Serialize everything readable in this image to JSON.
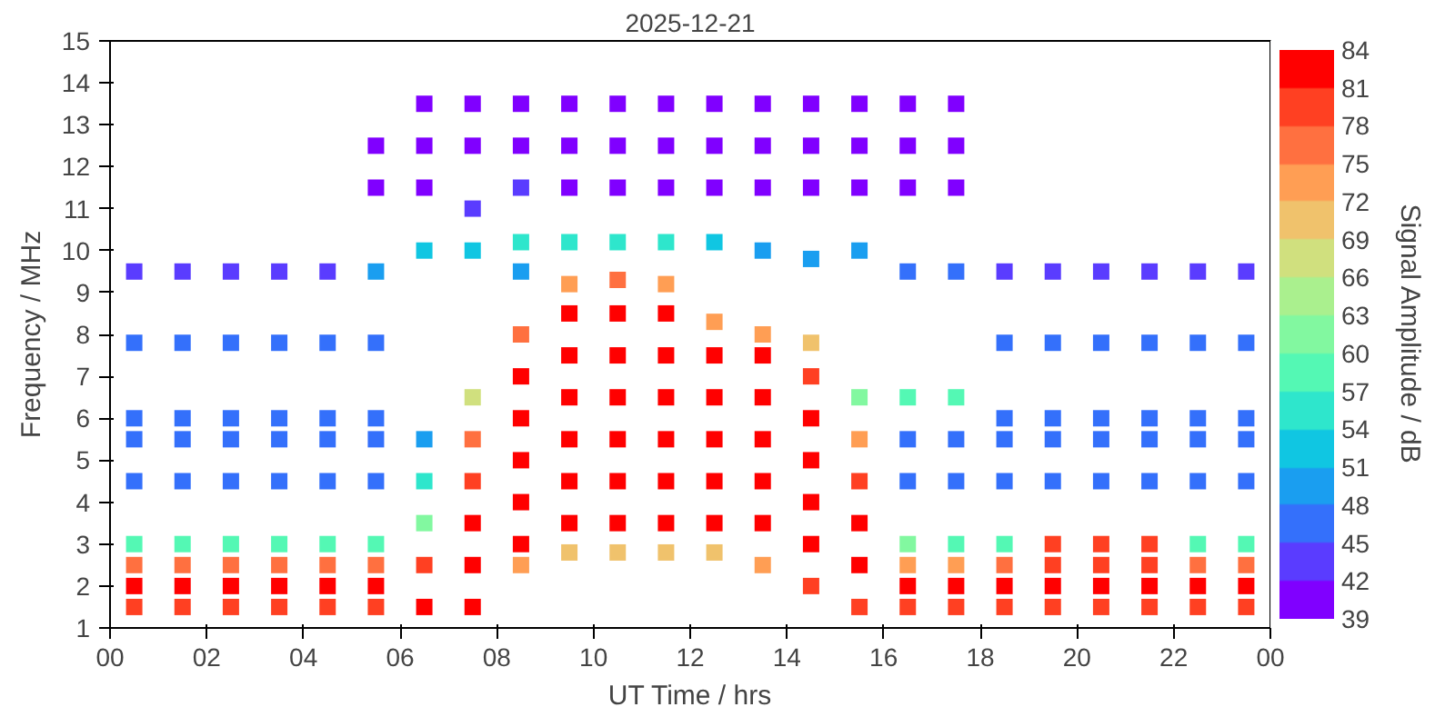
{
  "chart_data": {
    "type": "scatter",
    "title": "2025-12-21",
    "xlabel": "UT Time / hrs",
    "ylabel": "Frequency / MHz",
    "clabel": "Signal Amplitude / dB",
    "marker": "square",
    "xlim": [
      0,
      24
    ],
    "xticks": [
      {
        "value": 0,
        "label": "00"
      },
      {
        "value": 2,
        "label": "02"
      },
      {
        "value": 4,
        "label": "04"
      },
      {
        "value": 6,
        "label": "06"
      },
      {
        "value": 8,
        "label": "08"
      },
      {
        "value": 10,
        "label": "10"
      },
      {
        "value": 12,
        "label": "12"
      },
      {
        "value": 14,
        "label": "14"
      },
      {
        "value": 16,
        "label": "16"
      },
      {
        "value": 18,
        "label": "18"
      },
      {
        "value": 20,
        "label": "20"
      },
      {
        "value": 22,
        "label": "22"
      },
      {
        "value": 24,
        "label": "00"
      }
    ],
    "ylim": [
      1,
      15
    ],
    "yticks": [
      1,
      2,
      3,
      4,
      5,
      6,
      7,
      8,
      9,
      10,
      11,
      12,
      13,
      14,
      15
    ],
    "clim": [
      39,
      84
    ],
    "cticks": [
      39,
      42,
      45,
      48,
      51,
      54,
      57,
      60,
      63,
      66,
      69,
      72,
      75,
      78,
      81,
      84
    ],
    "x": [
      0.5,
      0.5,
      0.5,
      0.5,
      0.5,
      0.5,
      0.5,
      0.5,
      0.5,
      1.5,
      1.5,
      1.5,
      1.5,
      1.5,
      1.5,
      1.5,
      1.5,
      1.5,
      2.5,
      2.5,
      2.5,
      2.5,
      2.5,
      2.5,
      2.5,
      2.5,
      2.5,
      3.5,
      3.5,
      3.5,
      3.5,
      3.5,
      3.5,
      3.5,
      3.5,
      3.5,
      4.5,
      4.5,
      4.5,
      4.5,
      4.5,
      4.5,
      4.5,
      4.5,
      4.5,
      5.5,
      5.5,
      5.5,
      5.5,
      5.5,
      5.5,
      5.5,
      5.5,
      5.5,
      5.5,
      5.5,
      6.5,
      6.5,
      6.5,
      6.5,
      6.5,
      6.5,
      6.5,
      6.5,
      6.5,
      7.5,
      7.5,
      7.5,
      7.5,
      7.5,
      7.5,
      7.5,
      7.5,
      7.5,
      7.5,
      8.5,
      8.5,
      8.5,
      8.5,
      8.5,
      8.5,
      8.5,
      8.5,
      8.5,
      8.5,
      8.5,
      8.5,
      9.5,
      9.5,
      9.5,
      9.5,
      9.5,
      9.5,
      9.5,
      9.5,
      9.5,
      9.5,
      9.5,
      9.5,
      10.5,
      10.5,
      10.5,
      10.5,
      10.5,
      10.5,
      10.5,
      10.5,
      10.5,
      10.5,
      10.5,
      10.5,
      11.5,
      11.5,
      11.5,
      11.5,
      11.5,
      11.5,
      11.5,
      11.5,
      11.5,
      11.5,
      11.5,
      11.5,
      12.5,
      12.5,
      12.5,
      12.5,
      12.5,
      12.5,
      12.5,
      12.5,
      12.5,
      12.5,
      12.5,
      13.5,
      13.5,
      13.5,
      13.5,
      13.5,
      13.5,
      13.5,
      13.5,
      13.5,
      13.5,
      13.5,
      14.5,
      14.5,
      14.5,
      14.5,
      14.5,
      14.5,
      14.5,
      14.5,
      14.5,
      14.5,
      14.5,
      15.5,
      15.5,
      15.5,
      15.5,
      15.5,
      15.5,
      15.5,
      15.5,
      15.5,
      15.5,
      16.5,
      16.5,
      16.5,
      16.5,
      16.5,
      16.5,
      16.5,
      16.5,
      16.5,
      16.5,
      16.5,
      17.5,
      17.5,
      17.5,
      17.5,
      17.5,
      17.5,
      17.5,
      17.5,
      17.5,
      17.5,
      17.5,
      18.5,
      18.5,
      18.5,
      18.5,
      18.5,
      18.5,
      18.5,
      18.5,
      18.5,
      19.5,
      19.5,
      19.5,
      19.5,
      19.5,
      19.5,
      19.5,
      19.5,
      19.5,
      20.5,
      20.5,
      20.5,
      20.5,
      20.5,
      20.5,
      20.5,
      20.5,
      20.5,
      21.5,
      21.5,
      21.5,
      21.5,
      21.5,
      21.5,
      21.5,
      21.5,
      21.5,
      22.5,
      22.5,
      22.5,
      22.5,
      22.5,
      22.5,
      22.5,
      22.5,
      22.5,
      23.5,
      23.5,
      23.5,
      23.5,
      23.5,
      23.5,
      23.5,
      23.5,
      23.5
    ],
    "values": [
      1.5,
      2.0,
      2.5,
      3.0,
      4.5,
      5.5,
      6.0,
      7.8,
      9.5,
      1.5,
      2.0,
      2.5,
      3.0,
      4.5,
      5.5,
      6.0,
      7.8,
      9.5,
      1.5,
      2.0,
      2.5,
      3.0,
      4.5,
      5.5,
      6.0,
      7.8,
      9.5,
      1.5,
      2.0,
      2.5,
      3.0,
      4.5,
      5.5,
      6.0,
      7.8,
      9.5,
      1.5,
      2.0,
      2.5,
      3.0,
      4.5,
      5.5,
      6.0,
      7.8,
      9.5,
      1.5,
      2.0,
      2.5,
      3.0,
      4.5,
      5.5,
      6.0,
      7.8,
      9.5,
      11.5,
      12.5,
      1.5,
      2.5,
      3.5,
      4.5,
      5.5,
      10.0,
      11.5,
      12.5,
      13.5,
      1.5,
      2.5,
      3.5,
      4.5,
      5.5,
      6.5,
      10.0,
      11.0,
      12.5,
      13.5,
      2.5,
      3.0,
      4.0,
      5.0,
      6.0,
      7.0,
      8.0,
      9.5,
      10.2,
      11.5,
      12.5,
      13.5,
      2.8,
      3.5,
      4.5,
      5.5,
      6.5,
      7.5,
      8.5,
      9.2,
      10.2,
      11.5,
      12.5,
      13.5,
      2.8,
      3.5,
      4.5,
      5.5,
      6.5,
      7.5,
      8.5,
      9.3,
      10.2,
      11.5,
      12.5,
      13.5,
      2.8,
      3.5,
      4.5,
      5.5,
      6.5,
      7.5,
      8.5,
      9.2,
      10.2,
      11.5,
      12.5,
      13.5,
      2.8,
      3.5,
      4.5,
      5.5,
      6.5,
      7.5,
      8.3,
      10.2,
      11.5,
      12.5,
      13.5,
      2.5,
      3.5,
      4.5,
      5.5,
      6.5,
      7.5,
      8.0,
      10.0,
      11.5,
      12.5,
      13.5,
      2.0,
      3.0,
      4.0,
      5.0,
      6.0,
      7.0,
      7.8,
      9.8,
      11.5,
      12.5,
      13.5,
      1.5,
      2.5,
      3.5,
      4.5,
      5.5,
      6.5,
      10.0,
      11.5,
      12.5,
      13.5,
      1.5,
      2.0,
      2.5,
      3.0,
      4.5,
      5.5,
      6.5,
      9.5,
      11.5,
      12.5,
      13.5,
      1.5,
      2.0,
      2.5,
      3.0,
      4.5,
      5.5,
      6.5,
      9.5,
      11.5,
      12.5,
      13.5,
      1.5,
      2.0,
      2.5,
      3.0,
      4.5,
      5.5,
      6.0,
      7.8,
      9.5,
      1.5,
      2.0,
      2.5,
      3.0,
      4.5,
      5.5,
      6.0,
      7.8,
      9.5,
      1.5,
      2.0,
      2.5,
      3.0,
      4.5,
      5.5,
      6.0,
      7.8,
      9.5,
      1.5,
      2.0,
      2.5,
      3.0,
      4.5,
      5.5,
      6.0,
      7.8,
      9.5,
      1.5,
      2.0,
      2.5,
      3.0,
      4.5,
      5.5,
      6.0,
      7.8,
      9.5,
      1.5,
      2.0,
      2.5,
      3.0,
      4.5,
      5.5,
      6.0,
      7.8,
      9.5
    ],
    "cvalues": [
      78,
      81,
      75,
      57,
      46,
      45,
      47,
      45,
      44,
      78,
      81,
      75,
      57,
      46,
      45,
      47,
      45,
      44,
      78,
      81,
      75,
      57,
      46,
      45,
      47,
      45,
      44,
      78,
      81,
      75,
      57,
      46,
      45,
      47,
      45,
      44,
      78,
      81,
      75,
      57,
      46,
      45,
      47,
      45,
      44,
      78,
      81,
      75,
      57,
      46,
      45,
      47,
      45,
      48,
      41,
      40,
      81,
      78,
      60,
      54,
      50,
      52,
      41,
      40,
      40,
      81,
      84,
      81,
      78,
      75,
      66,
      52,
      42,
      40,
      40,
      72,
      84,
      84,
      84,
      84,
      81,
      75,
      48,
      55,
      42,
      41,
      40,
      69,
      84,
      84,
      84,
      84,
      84,
      81,
      72,
      55,
      41,
      40,
      40,
      69,
      84,
      84,
      84,
      84,
      84,
      81,
      75,
      55,
      41,
      40,
      40,
      69,
      84,
      84,
      84,
      84,
      84,
      81,
      72,
      55,
      41,
      40,
      40,
      69,
      84,
      84,
      84,
      84,
      81,
      72,
      52,
      41,
      40,
      40,
      72,
      84,
      84,
      84,
      84,
      81,
      72,
      50,
      41,
      40,
      40,
      78,
      84,
      84,
      84,
      84,
      78,
      69,
      48,
      41,
      40,
      40,
      78,
      84,
      81,
      78,
      72,
      60,
      50,
      41,
      40,
      40,
      78,
      81,
      72,
      60,
      46,
      45,
      57,
      46,
      41,
      40,
      40,
      78,
      81,
      72,
      57,
      46,
      45,
      57,
      46,
      41,
      40,
      40,
      78,
      81,
      75,
      57,
      46,
      45,
      47,
      45,
      44,
      78,
      81,
      78,
      78,
      46,
      45,
      47,
      45,
      44,
      78,
      81,
      78,
      78,
      46,
      45,
      47,
      45,
      44,
      78,
      81,
      78,
      78,
      46,
      45,
      47,
      45,
      44,
      78,
      81,
      75,
      57,
      46,
      45,
      47,
      45,
      44,
      78,
      81,
      75,
      57,
      46,
      45,
      47,
      45,
      44
    ]
  }
}
